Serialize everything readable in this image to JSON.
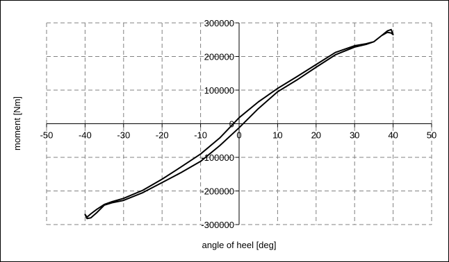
{
  "chart_data": {
    "type": "line",
    "xlabel": "angle of heel [deg]",
    "ylabel": "moment [Nm]",
    "xlim": [
      -50,
      50
    ],
    "ylim": [
      -300000,
      300000
    ],
    "x_ticks": [
      -50,
      -40,
      -30,
      -20,
      -10,
      0,
      10,
      20,
      30,
      40,
      50
    ],
    "y_ticks": [
      -300000,
      -200000,
      -100000,
      0,
      100000,
      200000,
      300000
    ],
    "grid": true,
    "legend": "none",
    "series": [
      {
        "x": [
          -39.5,
          -38.5,
          -37,
          -35,
          -33,
          -30,
          -25,
          -20,
          -15,
          -10,
          -5,
          0,
          5,
          10,
          15,
          20,
          25,
          30,
          33,
          35,
          37,
          38.5,
          39.5,
          40,
          39.5,
          38.5,
          37,
          35,
          33,
          30,
          25,
          20,
          15,
          10,
          5,
          0,
          -5,
          -10,
          -15,
          -20,
          -25,
          -30,
          -33,
          -35,
          -37,
          -38.5,
          -39.5,
          -40,
          -39.5
        ],
        "y": [
          -282000,
          -280000,
          -265000,
          -242000,
          -235000,
          -228000,
          -205000,
          -175000,
          -145000,
          -112000,
          -65000,
          -12000,
          45000,
          95000,
          130000,
          168000,
          205000,
          228000,
          236000,
          244000,
          262000,
          276000,
          280000,
          265000,
          270000,
          272000,
          262000,
          244000,
          238000,
          232000,
          212000,
          176000,
          140000,
          105000,
          65000,
          18000,
          -42000,
          -90000,
          -128000,
          -165000,
          -198000,
          -222000,
          -232000,
          -240000,
          -255000,
          -268000,
          -278000,
          -270000,
          -282000
        ]
      }
    ]
  }
}
